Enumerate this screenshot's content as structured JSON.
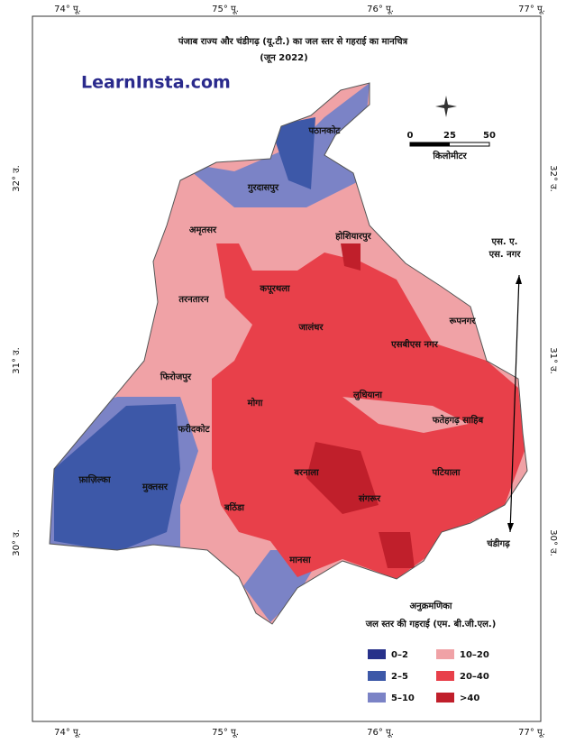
{
  "header": {
    "title": "पंजाब राज्य और चंडीगढ़ (यू.टी.) का जल स्तर से गहराई का मानचित्र",
    "subtitle": "(जून 2022)"
  },
  "watermark": "LearnInsta.com",
  "longitudes": [
    "74° पू.",
    "75° पू.",
    "76° पू.",
    "77° पू."
  ],
  "latitudes": [
    "32° उ.",
    "31° उ.",
    "30° उ."
  ],
  "scale": {
    "ticks": [
      0,
      25,
      50
    ],
    "unit": "किलोमीटर"
  },
  "places": [
    "पठानकोट",
    "गुरदासपुर",
    "अमृतसर",
    "होशियारपुर",
    "तरनतारन",
    "कपूरथला",
    "जालंधर",
    "रूपनगर",
    "एसबीएस नगर",
    "फिरोजपुर",
    "मोगा",
    "लुधियाना",
    "फरीदकोट",
    "फतेहगढ़ साहिब",
    "फ़ाज़िल्का",
    "मुक्तसर",
    "बरनाला",
    "पटियाला",
    "बठिंडा",
    "संगरूर",
    "मानसा"
  ],
  "sas_nagar": [
    "एस. ए.",
    "एस. नगर"
  ],
  "chandigarh": "चंडीगढ़",
  "legend": {
    "title": "अनुक्रमणिका",
    "subtitle": "जल स्तर की गहराई (एम. बी.जी.एल.)",
    "items": [
      {
        "label": "0–2",
        "color": "#27318a"
      },
      {
        "label": "2–5",
        "color": "#3d58a8"
      },
      {
        "label": "5–10",
        "color": "#7b83c6"
      },
      {
        "label": "10–20",
        "color": "#f0a2a6"
      },
      {
        "label": "20–40",
        "color": "#e8404a"
      },
      {
        "label": ">40",
        "color": "#c01f2b"
      }
    ]
  }
}
